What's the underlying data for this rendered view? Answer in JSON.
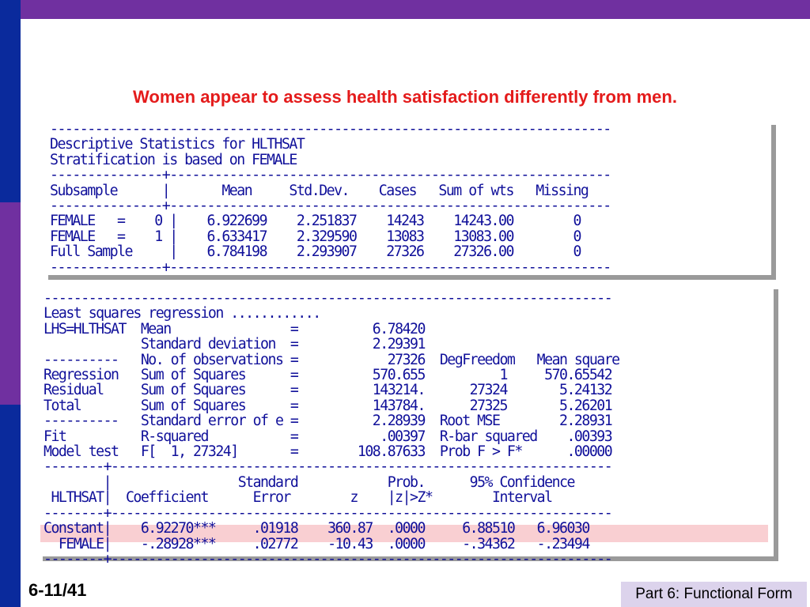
{
  "slide": {
    "title": "Women appear to assess health satisfaction differently from men.",
    "page_number": "6-11/41",
    "footer": "Part 6: Functional Form"
  },
  "descriptive_stats_text": "---------------------------------------------------------------------------\nDescriptive Statistics for HLTHSAT\nStratification is based on FEMALE\n---------------+-----------------------------------------------------------\nSubsample      |       Mean     Std.Dev.    Cases   Sum of wts   Missing\n---------------+-----------------------------------------------------------\nFEMALE   =    0 |    6.922699    2.251837    14243    14243.00        0\nFEMALE   =    1 |    6.633417    2.329590    13083    13083.00        0\nFull Sample     |    6.784198    2.293907    27326    27326.00        0\n---------------+-----------------------------------------------------------",
  "regression_text": "----------------------------------------------------------------------------\nLeast squares regression ............\nLHS=HLTHSAT  Mean                =          6.78420\n             Standard deviation  =          2.29391\n----------   No. of observations =            27326  DegFreedom   Mean square\nRegression   Sum of Squares      =          570.655          1     570.65542\nResidual     Sum of Squares      =          143214.      27324       5.24132\nTotal        Sum of Squares      =          143784.      27325       5.26201\n----------   Standard error of e =          2.28939  Root MSE        2.28931\nFit          R-squared           =           .00397  R-bar squared    .00393\nModel test   F[  1, 27324]       =        108.87633  Prob F > F*      .00000\n--------+-------------------------------------------------------------------\n        |                 Standard            Prob.      95% Confidence\n HLTHSAT|  Coefficient      Error        z    |z|>Z*        Interval\n--------+-------------------------------------------------------------------\nConstant|    6.92270***     .01918    360.87  .0000     6.88510   6.96030\n  FEMALE|    -.28928***     .02772    -10.43  .0000     -.34362   -.23494\n--------+-------------------------------------------------------------------",
  "colors": {
    "top_bar": "#7030a0",
    "left_bar_blue": "#0a2a9c",
    "left_bar_purple": "#7030a0",
    "title": "#e41b1b",
    "mono_text": "#10109a",
    "highlight_row": "#f9cfd2",
    "footer_bg": "#dcd3ec"
  }
}
